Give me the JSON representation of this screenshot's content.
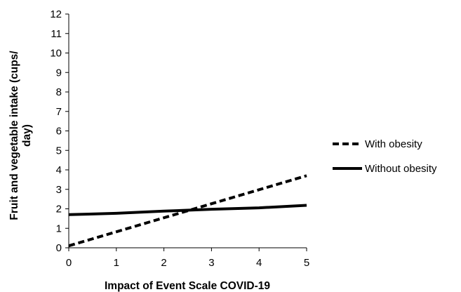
{
  "chart_data": {
    "type": "line",
    "xlabel": "Impact of Event Scale COVID-19",
    "ylabel_lines": [
      "Fruit and vegetable intake (cups/",
      "day)"
    ],
    "xlim": [
      0,
      5
    ],
    "ylim": [
      0,
      12
    ],
    "x_ticks": [
      "0",
      "1",
      "2",
      "3",
      "4",
      "5"
    ],
    "y_ticks": [
      "0",
      "1",
      "2",
      "3",
      "4",
      "5",
      "6",
      "7",
      "8",
      "9",
      "10",
      "11",
      "12"
    ],
    "grid": false,
    "legend_position": "right",
    "series": [
      {
        "name": "With obesity",
        "style": "dashed",
        "color": "#000000",
        "x": [
          0,
          5
        ],
        "y": [
          0.1,
          3.7
        ]
      },
      {
        "name": "Without obesity",
        "style": "solid",
        "color": "#000000",
        "x": [
          0,
          1,
          2,
          3,
          4,
          5
        ],
        "y": [
          1.7,
          1.77,
          1.88,
          1.98,
          2.05,
          2.18
        ]
      }
    ]
  }
}
